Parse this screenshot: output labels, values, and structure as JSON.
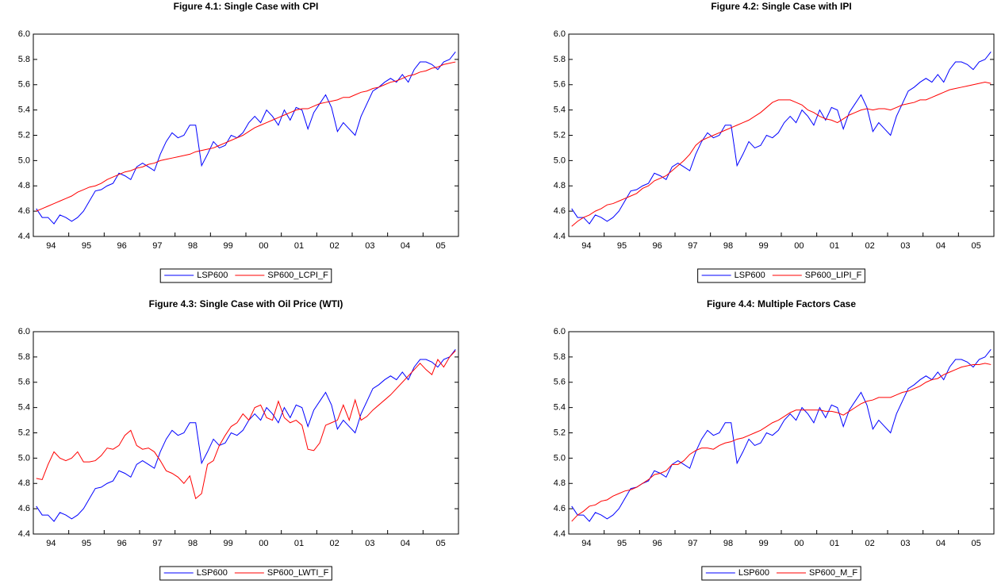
{
  "chart_data": [
    {
      "type": "line",
      "title": "Figure 4.1: Single Case with CPI",
      "categories": [
        null,
        null,
        null,
        "94",
        null,
        null,
        null,
        null,
        null,
        "95",
        null,
        null,
        null,
        null,
        null,
        "96",
        null,
        null,
        null,
        null,
        null,
        "97",
        null,
        null,
        null,
        null,
        null,
        "98",
        null,
        null,
        null,
        null,
        null,
        "99",
        null,
        null,
        null,
        null,
        null,
        "00",
        null,
        null,
        null,
        null,
        null,
        "01",
        null,
        null,
        null,
        null,
        null,
        "02",
        null,
        null,
        null,
        null,
        null,
        "03",
        null,
        null,
        null,
        null,
        null,
        "04",
        null,
        null,
        null,
        null,
        null,
        "05",
        null,
        null
      ],
      "ylim": [
        4.4,
        6.0
      ],
      "yticks": [
        4.4,
        4.6,
        4.8,
        {
          "value": 5.0,
          "label": "5.0"
        },
        5.2,
        5.4,
        5.6,
        5.8,
        {
          "value": 6.0,
          "label": "6.0"
        }
      ],
      "series": [
        {
          "name": "LSP600",
          "color": "#0000ff",
          "values": [
            4.62,
            4.55,
            4.55,
            4.5,
            4.57,
            4.55,
            4.52,
            4.55,
            4.6,
            4.68,
            4.76,
            4.77,
            4.8,
            4.82,
            4.9,
            4.88,
            4.85,
            4.95,
            4.98,
            4.95,
            4.92,
            5.05,
            5.15,
            5.22,
            5.18,
            5.2,
            5.28,
            5.28,
            4.96,
            5.05,
            5.15,
            5.1,
            5.12,
            5.2,
            5.18,
            5.22,
            5.3,
            5.35,
            5.3,
            5.4,
            5.35,
            5.28,
            5.4,
            5.32,
            5.42,
            5.4,
            5.25,
            5.38,
            5.45,
            5.52,
            5.42,
            5.23,
            5.3,
            5.25,
            5.2,
            5.35,
            5.45,
            5.55,
            5.58,
            5.62,
            5.65,
            5.62,
            5.68,
            5.62,
            5.72,
            5.78,
            5.78,
            5.76,
            5.72,
            5.78,
            5.8,
            5.86
          ]
        },
        {
          "name": "SP600_LCPI_F",
          "color": "#ff0000",
          "values": [
            4.6,
            4.62,
            4.64,
            4.66,
            4.68,
            4.7,
            4.72,
            4.75,
            4.77,
            4.79,
            4.8,
            4.82,
            4.85,
            4.87,
            4.89,
            4.91,
            4.92,
            4.94,
            4.95,
            4.97,
            4.98,
            5.0,
            5.01,
            5.02,
            5.03,
            5.04,
            5.05,
            5.07,
            5.08,
            5.09,
            5.1,
            5.12,
            5.14,
            5.16,
            5.18,
            5.2,
            5.23,
            5.26,
            5.28,
            5.3,
            5.32,
            5.34,
            5.36,
            5.38,
            5.4,
            5.41,
            5.41,
            5.43,
            5.45,
            5.46,
            5.47,
            5.48,
            5.5,
            5.5,
            5.52,
            5.54,
            5.55,
            5.57,
            5.58,
            5.6,
            5.62,
            5.63,
            5.65,
            5.67,
            5.68,
            5.7,
            5.71,
            5.73,
            5.74,
            5.76,
            5.77,
            5.78
          ]
        }
      ]
    },
    {
      "type": "line",
      "title": "Figure 4.2: Single Case with IPI",
      "categories": [
        null,
        null,
        null,
        "94",
        null,
        null,
        null,
        null,
        null,
        "95",
        null,
        null,
        null,
        null,
        null,
        "96",
        null,
        null,
        null,
        null,
        null,
        "97",
        null,
        null,
        null,
        null,
        null,
        "98",
        null,
        null,
        null,
        null,
        null,
        "99",
        null,
        null,
        null,
        null,
        null,
        "00",
        null,
        null,
        null,
        null,
        null,
        "01",
        null,
        null,
        null,
        null,
        null,
        "02",
        null,
        null,
        null,
        null,
        null,
        "03",
        null,
        null,
        null,
        null,
        null,
        "04",
        null,
        null,
        null,
        null,
        null,
        "05",
        null,
        null
      ],
      "ylim": [
        4.4,
        6.0
      ],
      "yticks": [
        4.4,
        4.6,
        4.8,
        {
          "value": 5.0,
          "label": "5.0"
        },
        5.2,
        5.4,
        5.6,
        5.8,
        {
          "value": 6.0,
          "label": "6.0"
        }
      ],
      "series": [
        {
          "name": "LSP600",
          "color": "#0000ff",
          "values": [
            4.62,
            4.55,
            4.55,
            4.5,
            4.57,
            4.55,
            4.52,
            4.55,
            4.6,
            4.68,
            4.76,
            4.77,
            4.8,
            4.82,
            4.9,
            4.88,
            4.85,
            4.95,
            4.98,
            4.95,
            4.92,
            5.05,
            5.15,
            5.22,
            5.18,
            5.2,
            5.28,
            5.28,
            4.96,
            5.05,
            5.15,
            5.1,
            5.12,
            5.2,
            5.18,
            5.22,
            5.3,
            5.35,
            5.3,
            5.4,
            5.35,
            5.28,
            5.4,
            5.32,
            5.42,
            5.4,
            5.25,
            5.38,
            5.45,
            5.52,
            5.42,
            5.23,
            5.3,
            5.25,
            5.2,
            5.35,
            5.45,
            5.55,
            5.58,
            5.62,
            5.65,
            5.62,
            5.68,
            5.62,
            5.72,
            5.78,
            5.78,
            5.76,
            5.72,
            5.78,
            5.8,
            5.86
          ]
        },
        {
          "name": "SP600_LIPI_F",
          "color": "#ff0000",
          "values": [
            4.48,
            4.52,
            4.55,
            4.57,
            4.6,
            4.62,
            4.65,
            4.66,
            4.68,
            4.7,
            4.72,
            4.74,
            4.78,
            4.8,
            4.84,
            4.86,
            4.88,
            4.92,
            4.96,
            5.0,
            5.05,
            5.12,
            5.16,
            5.18,
            5.2,
            5.22,
            5.24,
            5.26,
            5.28,
            5.3,
            5.32,
            5.35,
            5.38,
            5.42,
            5.46,
            5.48,
            5.48,
            5.48,
            5.46,
            5.44,
            5.4,
            5.38,
            5.35,
            5.33,
            5.32,
            5.3,
            5.33,
            5.36,
            5.38,
            5.4,
            5.41,
            5.4,
            5.41,
            5.41,
            5.4,
            5.42,
            5.44,
            5.45,
            5.46,
            5.48,
            5.48,
            5.5,
            5.52,
            5.54,
            5.56,
            5.57,
            5.58,
            5.59,
            5.6,
            5.61,
            5.62,
            5.61
          ]
        }
      ]
    },
    {
      "type": "line",
      "title": "Figure 4.3: Single Case with Oil Price (WTI)",
      "categories": [
        null,
        null,
        null,
        "94",
        null,
        null,
        null,
        null,
        null,
        "95",
        null,
        null,
        null,
        null,
        null,
        "96",
        null,
        null,
        null,
        null,
        null,
        "97",
        null,
        null,
        null,
        null,
        null,
        "98",
        null,
        null,
        null,
        null,
        null,
        "99",
        null,
        null,
        null,
        null,
        null,
        "00",
        null,
        null,
        null,
        null,
        null,
        "01",
        null,
        null,
        null,
        null,
        null,
        "02",
        null,
        null,
        null,
        null,
        null,
        "03",
        null,
        null,
        null,
        null,
        null,
        "04",
        null,
        null,
        null,
        null,
        null,
        "05",
        null,
        null
      ],
      "ylim": [
        4.4,
        6.0
      ],
      "yticks": [
        4.4,
        4.6,
        4.8,
        {
          "value": 5.0,
          "label": "5.0"
        },
        5.2,
        5.4,
        5.6,
        5.8,
        {
          "value": 6.0,
          "label": "6.0"
        }
      ],
      "series": [
        {
          "name": "LSP600",
          "color": "#0000ff",
          "values": [
            4.62,
            4.55,
            4.55,
            4.5,
            4.57,
            4.55,
            4.52,
            4.55,
            4.6,
            4.68,
            4.76,
            4.77,
            4.8,
            4.82,
            4.9,
            4.88,
            4.85,
            4.95,
            4.98,
            4.95,
            4.92,
            5.05,
            5.15,
            5.22,
            5.18,
            5.2,
            5.28,
            5.28,
            4.96,
            5.05,
            5.15,
            5.1,
            5.12,
            5.2,
            5.18,
            5.22,
            5.3,
            5.35,
            5.3,
            5.4,
            5.35,
            5.28,
            5.4,
            5.32,
            5.42,
            5.4,
            5.25,
            5.38,
            5.45,
            5.52,
            5.42,
            5.23,
            5.3,
            5.25,
            5.2,
            5.35,
            5.45,
            5.55,
            5.58,
            5.62,
            5.65,
            5.62,
            5.68,
            5.62,
            5.72,
            5.78,
            5.78,
            5.76,
            5.72,
            5.78,
            5.8,
            5.86
          ]
        },
        {
          "name": "SP600_LWTI_F",
          "color": "#ff0000",
          "values": [
            4.84,
            4.83,
            4.95,
            5.05,
            5.0,
            4.98,
            5.0,
            5.05,
            4.97,
            4.97,
            4.98,
            5.02,
            5.08,
            5.07,
            5.1,
            5.18,
            5.22,
            5.1,
            5.07,
            5.08,
            5.05,
            4.98,
            4.9,
            4.88,
            4.85,
            4.8,
            4.86,
            4.68,
            4.72,
            4.95,
            4.98,
            5.1,
            5.18,
            5.25,
            5.28,
            5.35,
            5.3,
            5.4,
            5.42,
            5.32,
            5.3,
            5.45,
            5.32,
            5.28,
            5.3,
            5.26,
            5.07,
            5.06,
            5.12,
            5.26,
            5.28,
            5.3,
            5.42,
            5.3,
            5.46,
            5.3,
            5.33,
            5.38,
            5.42,
            5.46,
            5.5,
            5.55,
            5.6,
            5.65,
            5.7,
            5.75,
            5.7,
            5.66,
            5.78,
            5.72,
            5.8,
            5.85
          ]
        }
      ]
    },
    {
      "type": "line",
      "title": "Figure 4.4: Multiple Factors Case",
      "categories": [
        null,
        null,
        null,
        "94",
        null,
        null,
        null,
        null,
        null,
        "95",
        null,
        null,
        null,
        null,
        null,
        "96",
        null,
        null,
        null,
        null,
        null,
        "97",
        null,
        null,
        null,
        null,
        null,
        "98",
        null,
        null,
        null,
        null,
        null,
        "99",
        null,
        null,
        null,
        null,
        null,
        "00",
        null,
        null,
        null,
        null,
        null,
        "01",
        null,
        null,
        null,
        null,
        null,
        "02",
        null,
        null,
        null,
        null,
        null,
        "03",
        null,
        null,
        null,
        null,
        null,
        "04",
        null,
        null,
        null,
        null,
        null,
        "05",
        null,
        null
      ],
      "ylim": [
        4.4,
        6.0
      ],
      "yticks": [
        4.4,
        4.6,
        4.8,
        {
          "value": 5.0,
          "label": "5.0"
        },
        5.2,
        5.4,
        5.6,
        5.8,
        {
          "value": 6.0,
          "label": "6.0"
        }
      ],
      "series": [
        {
          "name": "LSP600",
          "color": "#0000ff",
          "values": [
            4.62,
            4.55,
            4.55,
            4.5,
            4.57,
            4.55,
            4.52,
            4.55,
            4.6,
            4.68,
            4.76,
            4.77,
            4.8,
            4.82,
            4.9,
            4.88,
            4.85,
            4.95,
            4.98,
            4.95,
            4.92,
            5.05,
            5.15,
            5.22,
            5.18,
            5.2,
            5.28,
            5.28,
            4.96,
            5.05,
            5.15,
            5.1,
            5.12,
            5.2,
            5.18,
            5.22,
            5.3,
            5.35,
            5.3,
            5.4,
            5.35,
            5.28,
            5.4,
            5.32,
            5.42,
            5.4,
            5.25,
            5.38,
            5.45,
            5.52,
            5.42,
            5.23,
            5.3,
            5.25,
            5.2,
            5.35,
            5.45,
            5.55,
            5.58,
            5.62,
            5.65,
            5.62,
            5.68,
            5.62,
            5.72,
            5.78,
            5.78,
            5.76,
            5.72,
            5.78,
            5.8,
            5.86
          ]
        },
        {
          "name": "SP600_M_F",
          "color": "#ff0000",
          "values": [
            4.5,
            4.55,
            4.58,
            4.62,
            4.63,
            4.66,
            4.67,
            4.7,
            4.72,
            4.74,
            4.75,
            4.77,
            4.8,
            4.83,
            4.87,
            4.88,
            4.9,
            4.95,
            4.95,
            4.98,
            5.03,
            5.06,
            5.08,
            5.08,
            5.07,
            5.1,
            5.12,
            5.13,
            5.15,
            5.16,
            5.18,
            5.2,
            5.22,
            5.25,
            5.28,
            5.3,
            5.33,
            5.36,
            5.38,
            5.38,
            5.38,
            5.38,
            5.38,
            5.37,
            5.37,
            5.36,
            5.34,
            5.37,
            5.4,
            5.43,
            5.45,
            5.46,
            5.48,
            5.48,
            5.48,
            5.5,
            5.52,
            5.53,
            5.55,
            5.57,
            5.6,
            5.62,
            5.63,
            5.66,
            5.68,
            5.7,
            5.72,
            5.73,
            5.74,
            5.74,
            5.75,
            5.74
          ]
        }
      ]
    }
  ]
}
